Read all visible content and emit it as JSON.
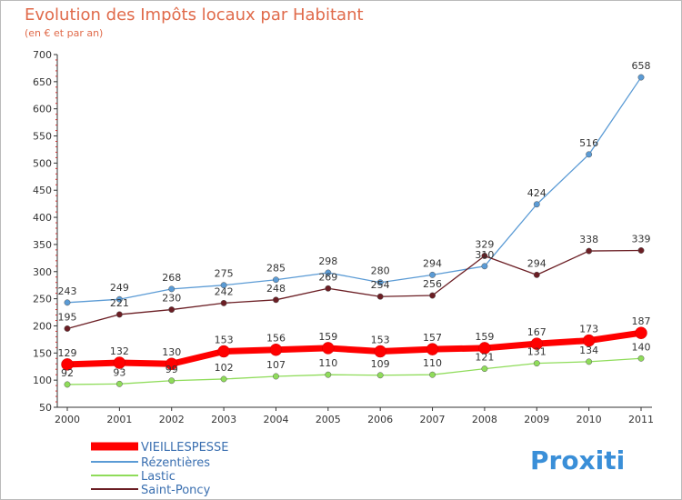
{
  "chart_data": {
    "type": "line",
    "title": "Evolution des Impôts locaux par Habitant",
    "subtitle": "(en € et par an)",
    "xlabel": "",
    "ylabel": "",
    "categories": [
      "2000",
      "2001",
      "2002",
      "2003",
      "2004",
      "2005",
      "2006",
      "2007",
      "2008",
      "2009",
      "2010",
      "2011"
    ],
    "ylim": [
      50,
      700
    ],
    "yticks": [
      50,
      100,
      150,
      200,
      250,
      300,
      350,
      400,
      450,
      500,
      550,
      600,
      650,
      700
    ],
    "grid": false,
    "legend_position": "bottom-left",
    "series": [
      {
        "name": "VIEILLESPESSE",
        "color": "#ff0000",
        "values": [
          129,
          132,
          130,
          153,
          156,
          159,
          153,
          157,
          159,
          167,
          173,
          187
        ]
      },
      {
        "name": "Rézentières",
        "color": "#5b9bd5",
        "values": [
          243,
          249,
          268,
          275,
          285,
          298,
          280,
          294,
          310,
          424,
          516,
          658
        ]
      },
      {
        "name": "Lastic",
        "color": "#8fdc5a",
        "values": [
          92,
          93,
          99,
          102,
          107,
          110,
          109,
          110,
          121,
          131,
          134,
          140
        ]
      },
      {
        "name": "Saint-Poncy",
        "color": "#6b1e24",
        "values": [
          195,
          221,
          230,
          242,
          248,
          269,
          254,
          256,
          329,
          294,
          338,
          339
        ]
      }
    ]
  },
  "logo": {
    "text": "Proxiti"
  }
}
